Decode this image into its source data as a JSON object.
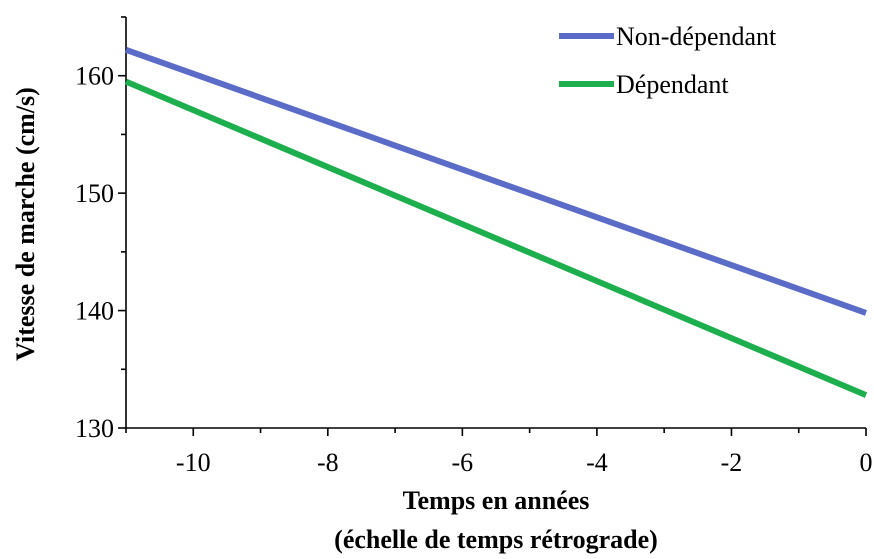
{
  "chart_data": {
    "type": "line",
    "title": "",
    "xlabel_line1": "Temps en années",
    "xlabel_line2": "(échelle de temps rétrograde)",
    "ylabel": "Vitesse de marche (cm/s)",
    "xlim": [
      -11,
      0
    ],
    "ylim": [
      130,
      165
    ],
    "xticks": [
      -10,
      -8,
      -6,
      -4,
      -2,
      0
    ],
    "xtick_labels": [
      "-10",
      "-8",
      "-6",
      "-4",
      "-2",
      "0"
    ],
    "xminor_ticks": [
      -11,
      -9,
      -7,
      -5,
      -3,
      -1
    ],
    "yticks": [
      130,
      140,
      150,
      160
    ],
    "ytick_labels": [
      "130",
      "140",
      "150",
      "160"
    ],
    "yminor_ticks": [
      135,
      145,
      155,
      165
    ],
    "grid": false,
    "legend_position": "top-right",
    "series": [
      {
        "name": "Non-dépendant",
        "color": "#5B6BC8",
        "x": [
          -11,
          0
        ],
        "y": [
          162.2,
          139.8
        ]
      },
      {
        "name": "Dépendant",
        "color": "#1DAF4E",
        "x": [
          -11,
          0
        ],
        "y": [
          159.5,
          132.8
        ]
      }
    ]
  }
}
